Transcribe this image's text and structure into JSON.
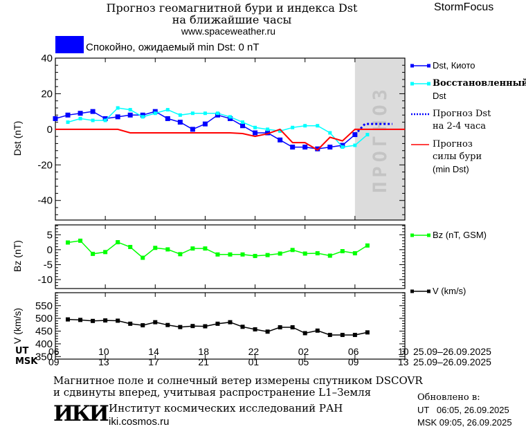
{
  "header": {
    "title_line1": "Прогноз геомагнитной бури и индекса Dst",
    "title_line2": "на ближайшие часы",
    "url": "www.spaceweather.ru",
    "brand": "StormFocus",
    "status_text": "Спокойно, ожидаемый min Dst: 0 nT",
    "status_color": "#0000ff"
  },
  "chart_data": [
    {
      "type": "line",
      "id": "dst",
      "ylabel": "Dst (nT)",
      "ylim": [
        -51,
        40
      ],
      "yticks": [
        40,
        20,
        0,
        -20,
        -40
      ],
      "xlim_hours": [
        0,
        28
      ],
      "forecast_shade_from_hour": 24,
      "forecast_label": "ПРОГНОЗ",
      "series": [
        {
          "name": "Dst, Киото",
          "color": "#0000ff",
          "marker": "square",
          "x_start": 0,
          "values": [
            6,
            8,
            9,
            10,
            6,
            7,
            8,
            8,
            10,
            6,
            4,
            0,
            3,
            8,
            6,
            2,
            -2,
            -2,
            -6,
            -10,
            -10,
            -11,
            -10,
            -9,
            -3
          ]
        },
        {
          "name": "Восстановленный Dst",
          "color": "#00ffff",
          "marker": "square",
          "x_start": 1,
          "values": [
            4,
            6,
            5,
            5,
            12,
            11,
            7,
            9,
            11,
            8,
            9,
            9,
            9,
            7,
            4,
            1,
            0,
            -1,
            1,
            2,
            2,
            -2,
            -10,
            -9,
            -3
          ]
        },
        {
          "name": "Прогноз Dst на 2-4 часа",
          "color": "#0000ff",
          "style": "dotted",
          "points": [
            [
              24,
              -3
            ],
            [
              24.8,
              3
            ],
            [
              27,
              3
            ]
          ]
        },
        {
          "name": "Прогноз силы бури (min Dst)",
          "color": "#ff0000",
          "marker": "none",
          "x_start": 0,
          "values": [
            0,
            0,
            0,
            0,
            0,
            0,
            -2,
            -2,
            -2,
            -2,
            -2,
            -2,
            -2,
            -2,
            -2,
            -2.4,
            -4,
            -2.5,
            0,
            -7.5,
            -7.5,
            -11.6,
            -4.5,
            -6.5,
            0,
            0,
            0,
            0,
            0
          ]
        }
      ],
      "legend": [
        {
          "label": "Dst, Киото"
        },
        {
          "label": "Восстановленный",
          "label2": "Dst"
        },
        {
          "label": "Прогноз Dst",
          "label2": "на 2-4 часа"
        },
        {
          "label": "Прогноз",
          "label2": "силы бури",
          "label3": "(min Dst)"
        }
      ]
    },
    {
      "type": "line",
      "id": "bz",
      "ylabel": "Bz (nT)",
      "ylim": [
        -13,
        8.3
      ],
      "yticks": [
        5,
        0,
        -5,
        -10
      ],
      "xlim_hours": [
        0,
        28
      ],
      "series": [
        {
          "name": "Bz (nT, GSM)",
          "color": "#00ff00",
          "marker": "square",
          "x_start": 1,
          "values": [
            2.4,
            3,
            -1.4,
            -0.8,
            2.5,
            0.9,
            -2.7,
            0.6,
            0.1,
            -1.5,
            0.4,
            0.4,
            -1.6,
            -1.6,
            -1.6,
            -2.1,
            -1.8,
            -1.3,
            -0.1,
            -1.3,
            -1.2,
            -2,
            -0.5,
            -1.2,
            1.4
          ]
        }
      ]
    },
    {
      "type": "line",
      "id": "v",
      "ylabel": "V (km/s)",
      "ylim": [
        340,
        601
      ],
      "yticks": [
        550,
        500,
        450,
        400,
        350
      ],
      "xlim_hours": [
        0,
        28
      ],
      "series": [
        {
          "name": "V (km/s)",
          "color": "#000000",
          "marker": "square",
          "x_start": 1,
          "values": [
            496,
            494,
            490,
            492,
            491,
            479,
            473,
            485,
            474,
            466,
            470,
            469,
            479,
            485,
            467,
            457,
            448,
            465,
            465,
            442,
            452,
            435,
            435,
            435,
            445
          ]
        }
      ]
    }
  ],
  "timeline": {
    "ut_label": "UT",
    "msk_label": "MSK",
    "ut_ticks": [
      "06",
      "10",
      "14",
      "18",
      "22",
      "02",
      "06",
      "10"
    ],
    "msk_ticks": [
      "09",
      "13",
      "17",
      "21",
      "01",
      "05",
      "09",
      "13"
    ],
    "ut_dates": "25.09–26.09.2025",
    "msk_dates": "25.09–26.09.2025"
  },
  "footer": {
    "note_line1": "Магнитное поле и солнечный ветер измерены спутником DSCOVR",
    "note_line2": "и сдвинуты вперед, учитывая распространение L1–Земля",
    "logo_text": "ИКИ",
    "institute": "Институт космических исследований РАН",
    "institute_url": "iki.cosmos.ru",
    "updated_label": "Обновлено в:",
    "updated_ut": "UT   06:05, 26.09.2025",
    "updated_msk": "MSK 09:05, 26.09.2025"
  }
}
